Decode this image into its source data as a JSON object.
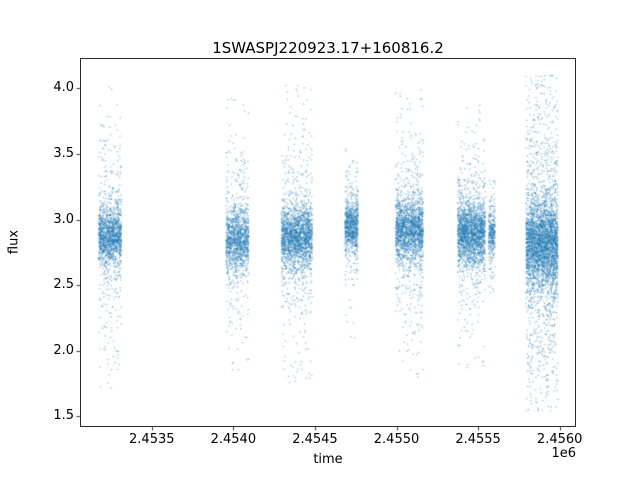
{
  "colors": {
    "point": "#1f77b4",
    "axis": "#000000",
    "background": "#ffffff"
  },
  "chart_data": {
    "type": "scatter",
    "title": "1SWASPJ220923.17+160816.2",
    "xlabel": "time",
    "ylabel": "flux",
    "x_offset_text": "1e6",
    "xlim": [
      2453060,
      2456100
    ],
    "ylim": [
      1.42,
      4.23
    ],
    "xticks": {
      "values": [
        2453500,
        2454000,
        2454500,
        2455000,
        2455500,
        2456000
      ],
      "labels": [
        "2.4535",
        "2.4540",
        "2.4545",
        "2.4550",
        "2.4555",
        "2.4560"
      ]
    },
    "yticks": {
      "values": [
        1.5,
        2.0,
        2.5,
        3.0,
        3.5,
        4.0
      ],
      "labels": [
        "1.5",
        "2.0",
        "2.5",
        "3.0",
        "3.5",
        "4.0"
      ]
    },
    "grid": false,
    "legend": null,
    "point_color": "#1f77b4",
    "point_alpha": 0.45,
    "marker_size_px": 1.3,
    "tail_frac": 0.25,
    "clusters": [
      {
        "x_start": 2453170,
        "x_end": 2453310,
        "n": 1600,
        "flux_mean": 2.88,
        "core_sd": 0.1,
        "tail_sd": 0.33,
        "outlier_frac": 0.05,
        "flux_min": 1.7,
        "flux_max": 4.05
      },
      {
        "x_start": 2453950,
        "x_end": 2454090,
        "n": 1400,
        "flux_mean": 2.85,
        "core_sd": 0.11,
        "tail_sd": 0.3,
        "outlier_frac": 0.05,
        "flux_min": 1.85,
        "flux_max": 3.95
      },
      {
        "x_start": 2454290,
        "x_end": 2454480,
        "n": 2200,
        "flux_mean": 2.88,
        "core_sd": 0.11,
        "tail_sd": 0.32,
        "outlier_frac": 0.05,
        "flux_min": 1.75,
        "flux_max": 4.05
      },
      {
        "x_start": 2454680,
        "x_end": 2454760,
        "n": 900,
        "flux_mean": 2.95,
        "core_sd": 0.09,
        "tail_sd": 0.22,
        "outlier_frac": 0.04,
        "flux_min": 2.1,
        "flux_max": 3.65
      },
      {
        "x_start": 2454990,
        "x_end": 2455160,
        "n": 2000,
        "flux_mean": 2.92,
        "core_sd": 0.11,
        "tail_sd": 0.3,
        "outlier_frac": 0.05,
        "flux_min": 1.8,
        "flux_max": 4.0
      },
      {
        "x_start": 2455370,
        "x_end": 2455540,
        "n": 2200,
        "flux_mean": 2.9,
        "core_sd": 0.11,
        "tail_sd": 0.28,
        "outlier_frac": 0.05,
        "flux_min": 1.85,
        "flux_max": 3.9
      },
      {
        "x_start": 2455560,
        "x_end": 2455600,
        "n": 350,
        "flux_mean": 2.9,
        "core_sd": 0.09,
        "tail_sd": 0.2,
        "outlier_frac": 0.03,
        "flux_min": 2.4,
        "flux_max": 3.3
      },
      {
        "x_start": 2455790,
        "x_end": 2455985,
        "n": 3800,
        "flux_mean": 2.82,
        "core_sd": 0.16,
        "tail_sd": 0.5,
        "outlier_frac": 0.1,
        "flux_min": 1.55,
        "flux_max": 4.1
      }
    ]
  }
}
